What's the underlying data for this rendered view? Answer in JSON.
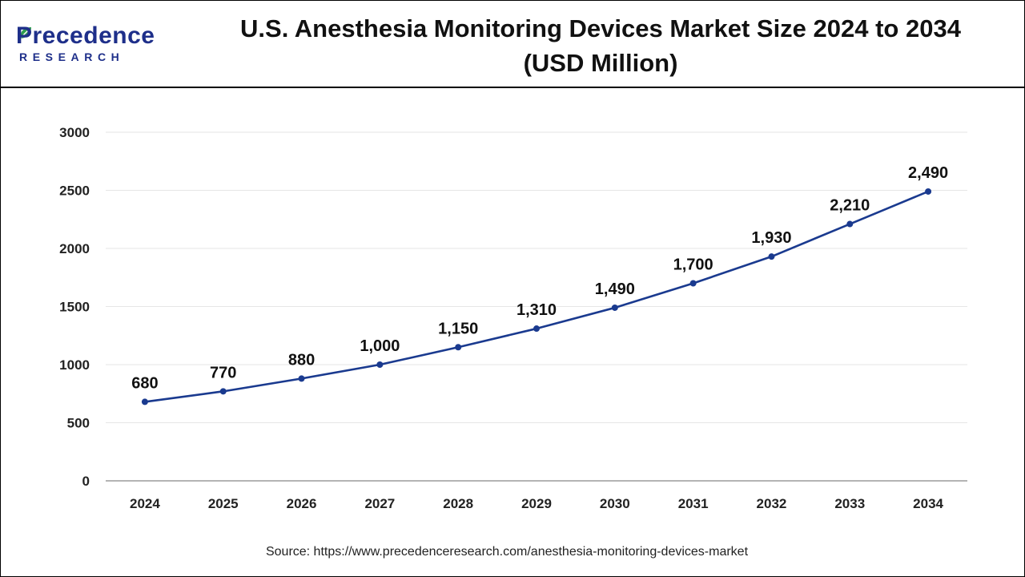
{
  "brand": {
    "name": "Precedence",
    "sub": "RESEARCH",
    "color": "#1e2f8a",
    "leaf_color": "#2e9e4f"
  },
  "chart_data": {
    "type": "line",
    "title_line1": "U.S. Anesthesia Monitoring Devices Market Size 2024 to 2034",
    "title_line2": "(USD Million)",
    "x": [
      "2024",
      "2025",
      "2026",
      "2027",
      "2028",
      "2029",
      "2030",
      "2031",
      "2032",
      "2033",
      "2034"
    ],
    "values": [
      680,
      770,
      880,
      1000,
      1150,
      1310,
      1490,
      1700,
      1930,
      2210,
      2490
    ],
    "labels": [
      "680",
      "770",
      "880",
      "1,000",
      "1,150",
      "1,310",
      "1,490",
      "1,700",
      "1,930",
      "2,210",
      "2,490"
    ],
    "yticks": [
      "0",
      "500",
      "1000",
      "1500",
      "2000",
      "2500",
      "3000"
    ],
    "ylim": [
      0,
      3000
    ],
    "xlabel": "",
    "ylabel": "",
    "grid": true,
    "line_color": "#1a3a8f"
  },
  "source": "Source: https://www.precedenceresearch.com/anesthesia-monitoring-devices-market"
}
